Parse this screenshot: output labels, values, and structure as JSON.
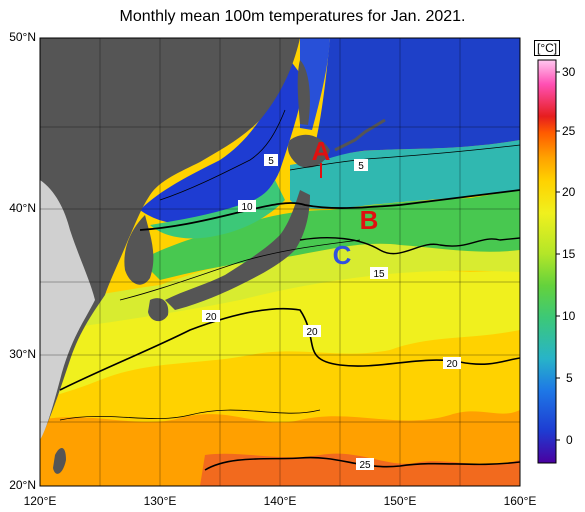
{
  "title": "Monthly mean 100m temperatures for Jan. 2021.",
  "lat_labels": [
    "50°N",
    "40°N",
    "30°N",
    "20°N"
  ],
  "lon_labels": [
    "120°E",
    "130°E",
    "140°E",
    "150°E",
    "160°E"
  ],
  "colorbar": {
    "unit": "[°C]",
    "ticks": [
      "30",
      "25",
      "20",
      "15",
      "10",
      "5",
      "0"
    ],
    "range": [
      -3,
      32
    ],
    "colors": [
      "#4a00a0",
      "#1e3cd2",
      "#1e78e6",
      "#28b4c8",
      "#3cc878",
      "#64d23c",
      "#b4e628",
      "#f0f01e",
      "#ffd200",
      "#ffa000",
      "#ff5a00",
      "#e61e1e",
      "#ff50b4",
      "#ffc8f0"
    ]
  },
  "map": {
    "lon_range": [
      120,
      160
    ],
    "lat_range": [
      20,
      50
    ],
    "grid_step": 5,
    "land_color": "#555555",
    "outside_color": "#d0d0d0"
  },
  "contour_labels": [
    "5",
    "5",
    "10",
    "15",
    "20",
    "20",
    "20",
    "25"
  ],
  "markers": [
    {
      "label": "A",
      "color": "#e01010"
    },
    {
      "label": "B",
      "color": "#e01010"
    },
    {
      "label": "C",
      "color": "#3050e0"
    }
  ]
}
